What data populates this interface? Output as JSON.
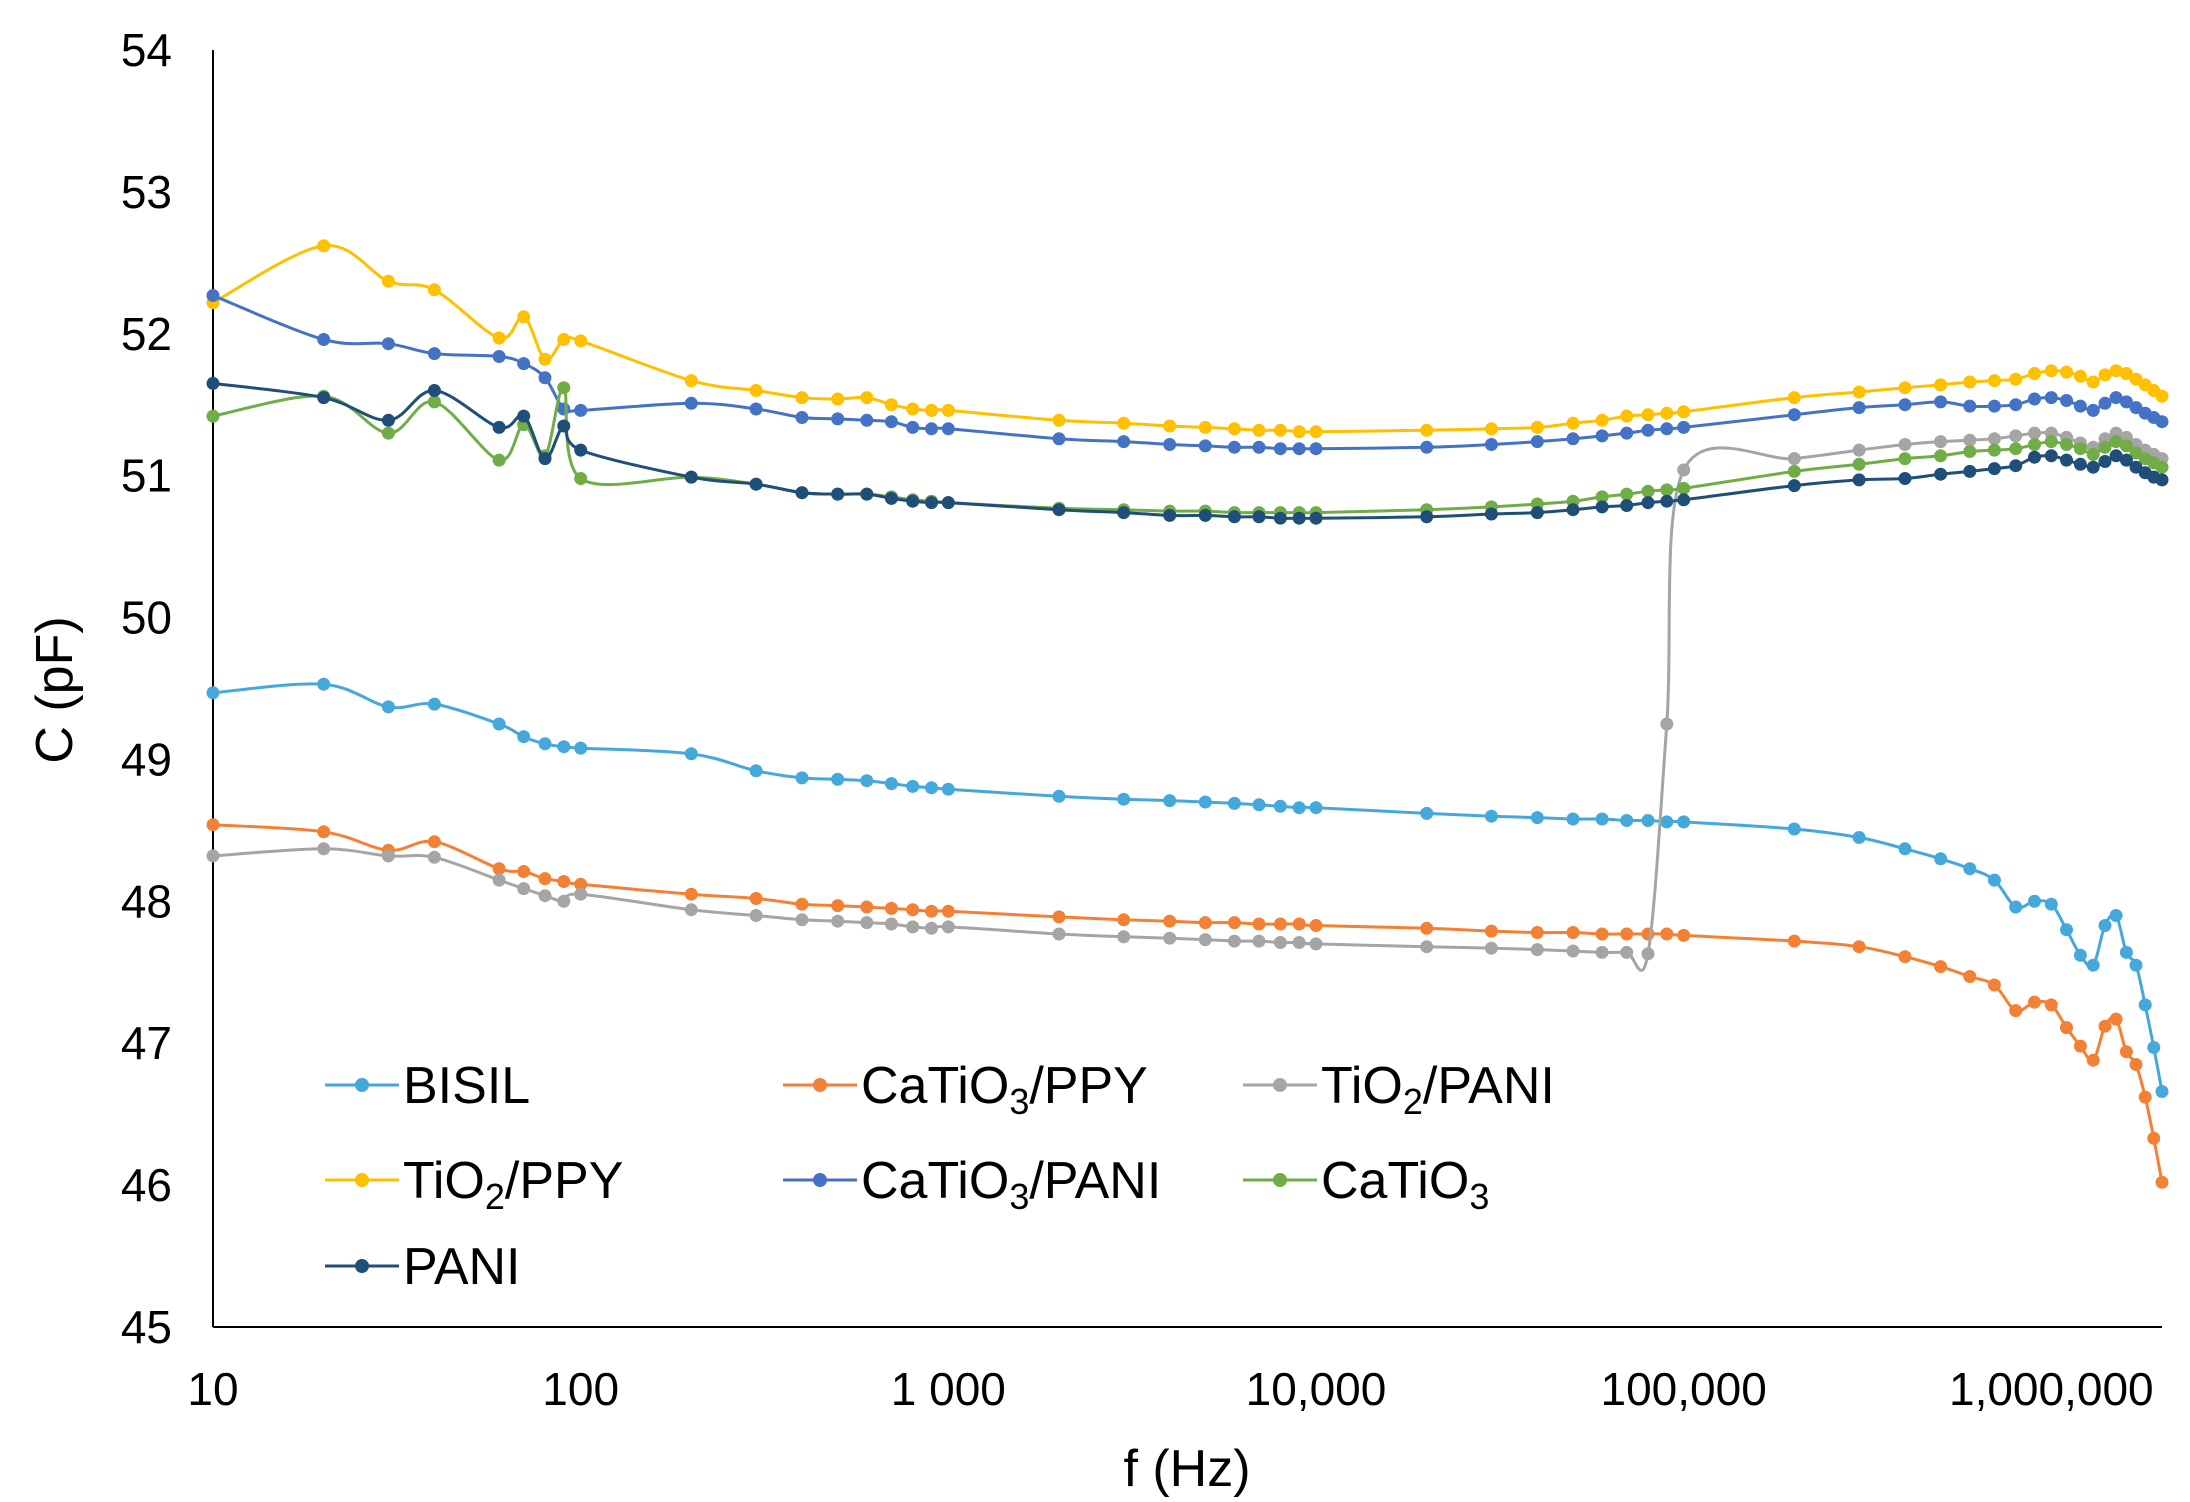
{
  "chart_data": {
    "type": "line",
    "title": "",
    "xlabel": "f (Hz)",
    "ylabel": "C (pF)",
    "xscale": "log",
    "xlim": [
      10,
      2000000
    ],
    "ylim": [
      45,
      54
    ],
    "yticks": [
      45,
      46,
      47,
      48,
      49,
      50,
      51,
      52,
      53,
      54
    ],
    "xtick_values": [
      10,
      100,
      1000,
      10000,
      100000,
      1000000
    ],
    "xtick_labels": [
      "10",
      "100",
      "1 000",
      "10,000",
      "100,000",
      "1,000,000"
    ],
    "grid": false,
    "legend_position": "bottom-left",
    "x": [
      10,
      20,
      30,
      40,
      60,
      70,
      80,
      90,
      100,
      200,
      300,
      400,
      500,
      600,
      700,
      800,
      900,
      1000,
      2000,
      3000,
      4000,
      5000,
      6000,
      7000,
      8000,
      9000,
      10000,
      20000,
      30000,
      40000,
      50000,
      60000,
      70000,
      80000,
      90000,
      100000,
      200000,
      300000,
      400000,
      500000,
      600000,
      700000,
      800000,
      900000,
      1000000,
      1100000,
      1200000,
      1300000,
      1400000,
      1500000,
      1600000,
      1700000,
      1800000,
      1900000,
      2000000
    ],
    "series": [
      {
        "name": "BISIL",
        "label_main": "BISIL",
        "label_sub": "",
        "label_tail": "",
        "color": "#45A8DB",
        "values": [
          49.47,
          49.53,
          49.37,
          49.39,
          49.25,
          49.16,
          49.11,
          49.09,
          49.08,
          49.04,
          48.92,
          48.87,
          48.86,
          48.85,
          48.83,
          48.81,
          48.8,
          48.79,
          48.74,
          48.72,
          48.71,
          48.7,
          48.69,
          48.68,
          48.67,
          48.66,
          48.66,
          48.62,
          48.6,
          48.59,
          48.58,
          48.58,
          48.57,
          48.57,
          48.56,
          48.56,
          48.51,
          48.45,
          48.37,
          48.3,
          48.23,
          48.15,
          47.96,
          48.0,
          47.98,
          47.8,
          47.62,
          47.55,
          47.83,
          47.9,
          47.64,
          47.55,
          47.27,
          46.97,
          46.66
        ]
      },
      {
        "name": "CaTiO3/PPY",
        "label_main": "CaTiO",
        "label_sub": "3",
        "label_tail": "/PPY",
        "color": "#F28135",
        "values": [
          48.54,
          48.49,
          48.36,
          48.42,
          48.23,
          48.21,
          48.16,
          48.14,
          48.12,
          48.05,
          48.02,
          47.98,
          47.97,
          47.96,
          47.95,
          47.94,
          47.93,
          47.93,
          47.89,
          47.87,
          47.86,
          47.85,
          47.85,
          47.84,
          47.84,
          47.84,
          47.83,
          47.81,
          47.79,
          47.78,
          47.78,
          47.77,
          47.77,
          47.77,
          47.77,
          47.76,
          47.72,
          47.68,
          47.61,
          47.54,
          47.47,
          47.41,
          47.23,
          47.29,
          47.27,
          47.11,
          46.98,
          46.88,
          47.12,
          47.17,
          46.94,
          46.85,
          46.62,
          46.33,
          46.02
        ]
      },
      {
        "name": "TiO2/PANI",
        "label_main": "TiO",
        "label_sub": "2",
        "label_tail": "/PANI",
        "color": "#A5A5A5",
        "values": [
          48.32,
          48.37,
          48.32,
          48.31,
          48.15,
          48.09,
          48.04,
          48.0,
          48.05,
          47.94,
          47.9,
          47.87,
          47.86,
          47.85,
          47.84,
          47.82,
          47.81,
          47.82,
          47.77,
          47.75,
          47.74,
          47.73,
          47.72,
          47.72,
          47.71,
          47.71,
          47.7,
          47.68,
          47.67,
          47.66,
          47.65,
          47.64,
          47.64,
          47.63,
          49.25,
          51.04,
          51.12,
          51.18,
          51.22,
          51.24,
          51.25,
          51.26,
          51.28,
          51.3,
          51.3,
          51.27,
          51.23,
          51.2,
          51.26,
          51.3,
          51.27,
          51.22,
          51.18,
          51.15,
          51.12
        ]
      },
      {
        "name": "TiO2/PPY",
        "label_main": "TiO",
        "label_sub": "2",
        "label_tail": "/PPY",
        "color": "#FFC000",
        "values": [
          52.22,
          52.62,
          52.37,
          52.31,
          51.97,
          52.12,
          51.82,
          51.96,
          51.95,
          51.67,
          51.6,
          51.55,
          51.54,
          51.55,
          51.5,
          51.47,
          51.46,
          51.46,
          51.39,
          51.37,
          51.35,
          51.34,
          51.33,
          51.32,
          51.32,
          51.31,
          51.31,
          51.32,
          51.33,
          51.34,
          51.37,
          51.39,
          51.42,
          51.43,
          51.44,
          51.45,
          51.55,
          51.59,
          51.62,
          51.64,
          51.66,
          51.67,
          51.68,
          51.72,
          51.74,
          51.73,
          51.7,
          51.66,
          51.71,
          51.74,
          51.72,
          51.68,
          51.64,
          51.6,
          51.56
        ]
      },
      {
        "name": "CaTiO3/PANI",
        "label_main": "CaTiO",
        "label_sub": "3",
        "label_tail": "/PANI",
        "color": "#4472C4",
        "values": [
          52.27,
          51.96,
          51.93,
          51.86,
          51.84,
          51.79,
          51.69,
          51.47,
          51.46,
          51.51,
          51.47,
          51.41,
          51.4,
          51.39,
          51.38,
          51.34,
          51.33,
          51.33,
          51.26,
          51.24,
          51.22,
          51.21,
          51.2,
          51.2,
          51.19,
          51.19,
          51.19,
          51.2,
          51.22,
          51.24,
          51.26,
          51.28,
          51.3,
          51.32,
          51.33,
          51.34,
          51.43,
          51.48,
          51.5,
          51.52,
          51.49,
          51.49,
          51.5,
          51.54,
          51.55,
          51.53,
          51.49,
          51.46,
          51.51,
          51.55,
          51.52,
          51.48,
          51.44,
          51.41,
          51.38
        ]
      },
      {
        "name": "CaTiO3",
        "label_main": "CaTiO",
        "label_sub": "3",
        "label_tail": "",
        "color": "#70AD47",
        "values": [
          51.42,
          51.56,
          51.3,
          51.52,
          51.11,
          51.36,
          51.14,
          51.62,
          50.98,
          50.99,
          50.94,
          50.88,
          50.87,
          50.87,
          50.85,
          50.83,
          50.82,
          50.81,
          50.77,
          50.76,
          50.75,
          50.75,
          50.74,
          50.74,
          50.74,
          50.74,
          50.74,
          50.76,
          50.78,
          50.8,
          50.82,
          50.85,
          50.87,
          50.89,
          50.9,
          50.91,
          51.03,
          51.08,
          51.12,
          51.14,
          51.17,
          51.18,
          51.19,
          51.22,
          51.24,
          51.22,
          51.19,
          51.15,
          51.2,
          51.24,
          51.21,
          51.16,
          51.12,
          51.09,
          51.06
        ]
      },
      {
        "name": "PANI",
        "label_main": "PANI",
        "label_sub": "",
        "label_tail": "",
        "color": "#1F4E79",
        "values": [
          51.65,
          51.55,
          51.39,
          51.6,
          51.34,
          51.42,
          51.12,
          51.35,
          51.18,
          50.99,
          50.94,
          50.88,
          50.87,
          50.87,
          50.84,
          50.82,
          50.81,
          50.81,
          50.76,
          50.74,
          50.72,
          50.72,
          50.71,
          50.71,
          50.7,
          50.7,
          50.7,
          50.71,
          50.73,
          50.74,
          50.76,
          50.78,
          50.79,
          50.81,
          50.82,
          50.83,
          50.93,
          50.97,
          50.98,
          51.01,
          51.03,
          51.05,
          51.07,
          51.13,
          51.14,
          51.11,
          51.08,
          51.06,
          51.1,
          51.14,
          51.11,
          51.06,
          51.02,
          50.99,
          50.97
        ]
      }
    ]
  }
}
